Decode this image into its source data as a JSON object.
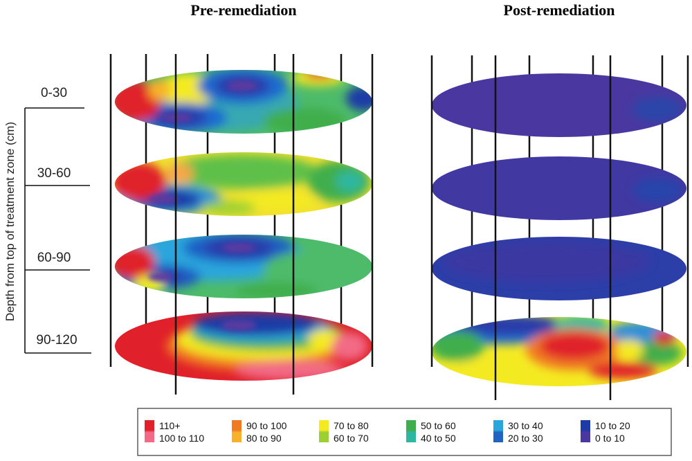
{
  "titles": {
    "pre": "Pre-remediation",
    "post": "Post-remediation"
  },
  "y_axis_label": "Depth from top of treatment zone (cm)",
  "depth_labels": [
    "0-30",
    "30-60",
    "60-90",
    "90-120"
  ],
  "legend": [
    {
      "label_top": "110+",
      "label_bottom": "100 to 110",
      "color_top": "#e0202a",
      "color_bottom": "#f26a86"
    },
    {
      "label_top": "90 to 100",
      "label_bottom": "80 to 90",
      "color_top": "#f07a22",
      "color_bottom": "#f7b12a"
    },
    {
      "label_top": "70 to 80",
      "label_bottom": "60 to 70",
      "color_top": "#f4ea22",
      "color_bottom": "#9cd032"
    },
    {
      "label_top": "50 to 60",
      "label_bottom": "40 to 50",
      "color_top": "#3fae4c",
      "color_bottom": "#2eb7a0"
    },
    {
      "label_top": "30 to 40",
      "label_bottom": "20 to 30",
      "color_top": "#2aa6dc",
      "color_bottom": "#1e64c0"
    },
    {
      "label_top": "10 to 20",
      "label_bottom": "0 to 10",
      "color_top": "#1d3aa6",
      "color_bottom": "#4a38a0"
    }
  ]
}
